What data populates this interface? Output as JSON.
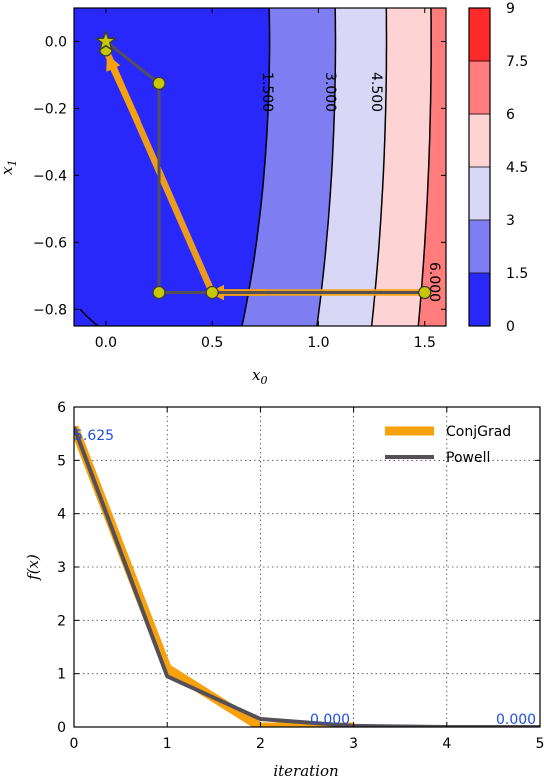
{
  "chart_data": [
    {
      "type": "contour",
      "xlabel": "x",
      "xlabel_sub": "0",
      "ylabel": "x",
      "ylabel_sub": "1",
      "xlim": [
        -0.15,
        1.6
      ],
      "ylim": [
        -0.85,
        0.1
      ],
      "xticks": [
        "0.0",
        "0.5",
        "1.0",
        "1.5"
      ],
      "xtick_values": [
        0.0,
        0.5,
        1.0,
        1.5
      ],
      "yticks": [
        "0.0",
        "−0.2",
        "−0.4",
        "−0.6",
        "−0.8"
      ],
      "ytick_values": [
        0.0,
        -0.2,
        -0.4,
        -0.6,
        -0.8
      ],
      "contour_levels": [
        0,
        1.5,
        3,
        4.5,
        6,
        7.5,
        9
      ],
      "contour_labels": [
        "1.500",
        "3.000",
        "4.500",
        "6.000"
      ],
      "colorbar_ticks": [
        "0",
        "1.5",
        "3",
        "4.5",
        "6",
        "7.5",
        "9"
      ],
      "colors": [
        "#2828fa",
        "#7e7ef2",
        "#d8d8f6",
        "#fdd3d3",
        "#ff7d7d",
        "#ff2a2a"
      ],
      "powell_path": [
        [
          1.5,
          -0.75
        ],
        [
          0.25,
          -0.75
        ],
        [
          0.25,
          -0.125
        ],
        [
          0.0,
          0.0
        ]
      ],
      "conjgrad_path": [
        [
          1.5,
          -0.75
        ],
        [
          0.5,
          -0.75
        ],
        [
          0.0,
          -0.025
        ]
      ],
      "minimum": [
        0.0,
        0.0
      ]
    },
    {
      "type": "line",
      "xlabel": "iteration",
      "ylabel": "f(x)",
      "xlim": [
        0,
        5
      ],
      "ylim": [
        0,
        6
      ],
      "xticks": [
        "0",
        "1",
        "2",
        "3",
        "4",
        "5"
      ],
      "yticks": [
        "0",
        "1",
        "2",
        "3",
        "4",
        "5",
        "6"
      ],
      "grid": true,
      "legend_position": "top-right",
      "series": [
        {
          "name": "ConjGrad",
          "color": "#f7a20c",
          "x": [
            0,
            1,
            2,
            3
          ],
          "values": [
            5.625,
            1.1,
            0.0,
            0.0
          ]
        },
        {
          "name": "Powell",
          "color": "#555058",
          "x": [
            0,
            1,
            2,
            3,
            4,
            5
          ],
          "values": [
            5.625,
            0.95,
            0.15,
            0.02,
            0.0,
            0.0
          ]
        }
      ],
      "annotations": [
        "5.625",
        "0.000",
        "0.000"
      ]
    }
  ]
}
